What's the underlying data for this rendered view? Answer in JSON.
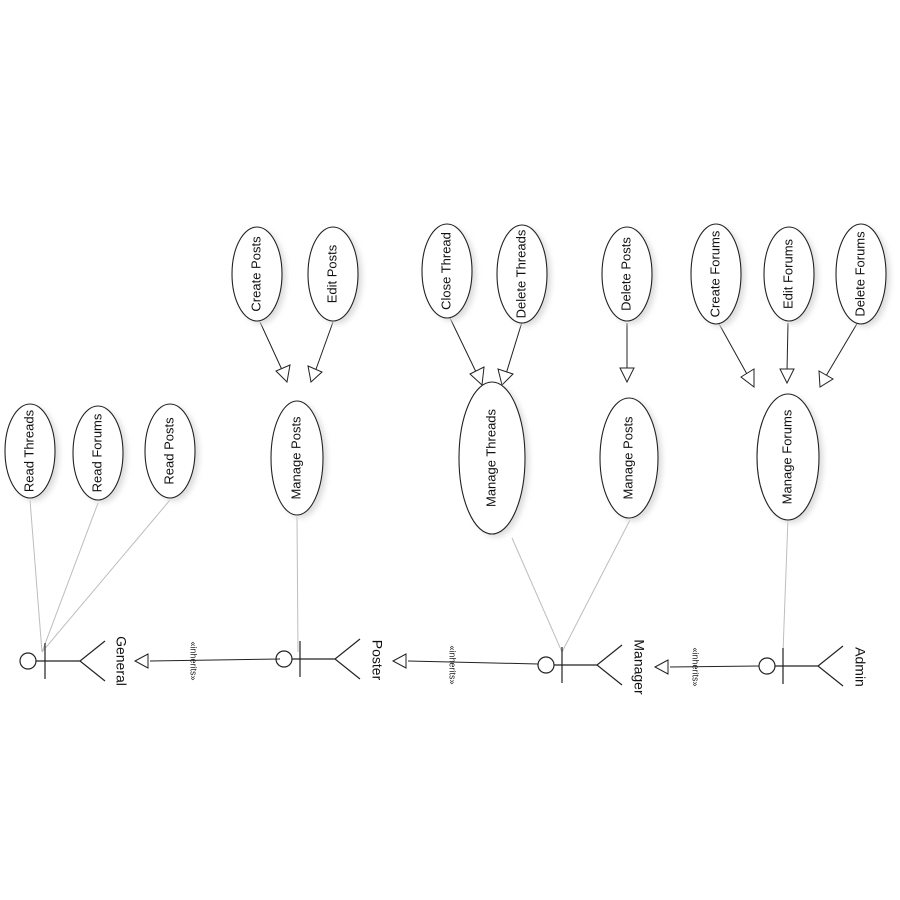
{
  "actors": {
    "general": {
      "label": "General",
      "head_color": "#ffffff"
    },
    "poster": {
      "label": "Poster",
      "head_color": "#ffffff"
    },
    "manager": {
      "label": "Manager",
      "head_color": "#c8c8c8"
    },
    "admin": {
      "label": "Admin",
      "head_color": "#444444"
    }
  },
  "use_cases": {
    "read_threads": "Read Threads",
    "read_forums": "Read Forums",
    "read_posts": "Read Posts",
    "create_posts": "Create Posts",
    "edit_posts": "Edit Posts",
    "manage_posts_poster": "Manage Posts",
    "close_thread": "Close Thread",
    "delete_threads": "Delete Threads",
    "manage_threads": "Manage Threads",
    "delete_posts": "Delete Posts",
    "manage_posts_manager": "Manage Posts",
    "create_forums": "Create Forums",
    "edit_forums": "Edit Forums",
    "delete_forums": "Delete Forums",
    "manage_forums": "Manage Forums"
  },
  "stereotypes": {
    "poster_general": "«inherits»",
    "manager_poster": "«inherits»",
    "admin_manager": "«inherits»"
  }
}
